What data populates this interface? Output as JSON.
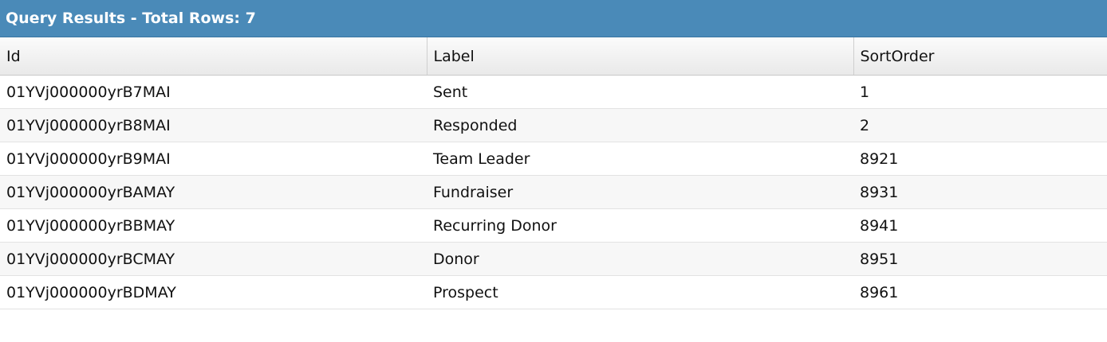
{
  "header": {
    "title": "Query Results - Total Rows: 7"
  },
  "table": {
    "columns": [
      "Id",
      "Label",
      "SortOrder"
    ],
    "rows": [
      [
        "01YVj000000yrB7MAI",
        "Sent",
        1
      ],
      [
        "01YVj000000yrB8MAI",
        "Responded",
        2
      ],
      [
        "01YVj000000yrB9MAI",
        "Team Leader",
        8921
      ],
      [
        "01YVj000000yrBAMAY",
        "Fundraiser",
        8931
      ],
      [
        "01YVj000000yrBBMAY",
        "Recurring Donor",
        8941
      ],
      [
        "01YVj000000yrBCMAY",
        "Donor",
        8951
      ],
      [
        "01YVj000000yrBDMAY",
        "Prospect",
        8961
      ]
    ]
  }
}
